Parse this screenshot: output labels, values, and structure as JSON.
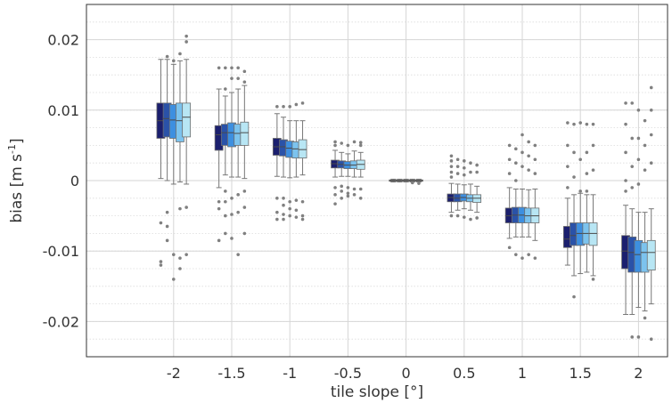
{
  "chart_data": {
    "type": "box",
    "xlabel": "tile slope [°]",
    "ylabel_main": "bias [m s",
    "ylabel_sup": "-1",
    "ylabel_close": "]",
    "xlim": [
      -2.75,
      2.25
    ],
    "ylim": [
      -0.025,
      0.025
    ],
    "x_ticks": [
      -2,
      -1.5,
      -1,
      -0.5,
      0,
      0.5,
      1,
      1.5,
      2
    ],
    "x_tick_labels": [
      "-2",
      "-1.5",
      "-1",
      "-0.5",
      "0",
      "0.5",
      "1",
      "1.5",
      "2"
    ],
    "y_ticks": [
      -0.02,
      -0.01,
      0,
      0.01,
      0.02
    ],
    "y_tick_labels": [
      "-0.02",
      "-0.01",
      "0",
      "0.01",
      "0.02"
    ],
    "y_minor_step": 0.0025,
    "grid": true,
    "series_colors": [
      "#1b1f6e",
      "#2a52a8",
      "#3d8fe0",
      "#7cc3ee",
      "#b8e6f4"
    ],
    "groups": [
      {
        "x": -2,
        "boxes": [
          {
            "q1": 0.006,
            "median": 0.0085,
            "q3": 0.011,
            "whisker_low": 0.0003,
            "whisker_high": 0.0172,
            "outliers": [
              -0.012,
              -0.0115,
              -0.006
            ]
          },
          {
            "q1": 0.0062,
            "median": 0.0088,
            "q3": 0.011,
            "whisker_low": 0.0,
            "whisker_high": 0.0172,
            "outliers": [
              0.0176,
              -0.0085,
              -0.0065,
              -0.0045
            ]
          },
          {
            "q1": 0.006,
            "median": 0.0086,
            "q3": 0.0108,
            "whisker_low": -0.0005,
            "whisker_high": 0.0165,
            "outliers": [
              0.017,
              -0.014,
              -0.0105
            ]
          },
          {
            "q1": 0.0055,
            "median": 0.0085,
            "q3": 0.011,
            "whisker_low": -0.0002,
            "whisker_high": 0.017,
            "outliers": [
              0.018,
              -0.0125,
              -0.011,
              -0.004
            ]
          },
          {
            "q1": 0.0062,
            "median": 0.009,
            "q3": 0.011,
            "whisker_low": -0.0005,
            "whisker_high": 0.0172,
            "outliers": [
              0.0205,
              0.0197,
              -0.0105,
              -0.0038
            ]
          }
        ]
      },
      {
        "x": -1.5,
        "boxes": [
          {
            "q1": 0.0043,
            "median": 0.0065,
            "q3": 0.0078,
            "whisker_low": -0.001,
            "whisker_high": 0.013,
            "outliers": [
              0.016,
              -0.003,
              -0.004,
              -0.0085
            ]
          },
          {
            "q1": 0.005,
            "median": 0.0068,
            "q3": 0.008,
            "whisker_low": 0.0008,
            "whisker_high": 0.012,
            "outliers": [
              0.016,
              0.013,
              -0.0015,
              -0.003,
              -0.005,
              -0.0075
            ]
          },
          {
            "q1": 0.0048,
            "median": 0.0068,
            "q3": 0.0082,
            "whisker_low": 0.0005,
            "whisker_high": 0.0125,
            "outliers": [
              0.016,
              0.0145,
              -0.0025,
              -0.0048,
              -0.0082
            ]
          },
          {
            "q1": 0.005,
            "median": 0.0067,
            "q3": 0.008,
            "whisker_low": 0.0005,
            "whisker_high": 0.013,
            "outliers": [
              0.016,
              0.0145,
              -0.002,
              -0.0045,
              -0.0105
            ]
          },
          {
            "q1": 0.005,
            "median": 0.0068,
            "q3": 0.0083,
            "whisker_low": 0.0003,
            "whisker_high": 0.0135,
            "outliers": [
              0.0155,
              0.014,
              -0.0015,
              -0.0038,
              -0.0075
            ]
          }
        ]
      },
      {
        "x": -1,
        "boxes": [
          {
            "q1": 0.0036,
            "median": 0.0048,
            "q3": 0.006,
            "whisker_low": 0.0006,
            "whisker_high": 0.0095,
            "outliers": [
              0.0105,
              -0.0025,
              -0.0045,
              -0.0055
            ]
          },
          {
            "q1": 0.0035,
            "median": 0.0048,
            "q3": 0.0058,
            "whisker_low": 0.0005,
            "whisker_high": 0.009,
            "outliers": [
              0.0105,
              -0.0025,
              -0.0035,
              -0.0048,
              -0.0055
            ]
          },
          {
            "q1": 0.0033,
            "median": 0.0046,
            "q3": 0.0056,
            "whisker_low": 0.0004,
            "whisker_high": 0.0085,
            "outliers": [
              0.0105,
              -0.003,
              -0.004,
              -0.005
            ]
          },
          {
            "q1": 0.0032,
            "median": 0.0045,
            "q3": 0.0055,
            "whisker_low": 0.0005,
            "whisker_high": 0.0085,
            "outliers": [
              0.0108,
              -0.0028,
              -0.0042,
              -0.0052
            ]
          },
          {
            "q1": 0.0032,
            "median": 0.0044,
            "q3": 0.0058,
            "whisker_low": 0.0008,
            "whisker_high": 0.0085,
            "outliers": [
              0.011,
              -0.003,
              -0.005,
              -0.0055
            ]
          }
        ]
      },
      {
        "x": -0.5,
        "boxes": [
          {
            "q1": 0.0018,
            "median": 0.0024,
            "q3": 0.0029,
            "whisker_low": 0.0005,
            "whisker_high": 0.0043,
            "outliers": [
              0.0055,
              0.005,
              -0.001,
              -0.002,
              -0.0033
            ]
          },
          {
            "q1": 0.0018,
            "median": 0.0023,
            "q3": 0.0028,
            "whisker_low": 0.0006,
            "whisker_high": 0.004,
            "outliers": [
              0.0053,
              -0.0008,
              -0.0015,
              -0.0025
            ]
          },
          {
            "q1": 0.0017,
            "median": 0.0022,
            "q3": 0.0027,
            "whisker_low": 0.0006,
            "whisker_high": 0.0038,
            "outliers": [
              0.005,
              -0.001,
              -0.0018,
              -0.0022
            ]
          },
          {
            "q1": 0.0017,
            "median": 0.0022,
            "q3": 0.0028,
            "whisker_low": 0.0005,
            "whisker_high": 0.0042,
            "outliers": [
              0.0055,
              -0.0012,
              -0.002
            ]
          },
          {
            "q1": 0.0016,
            "median": 0.0023,
            "q3": 0.0029,
            "whisker_low": 0.0005,
            "whisker_high": 0.004,
            "outliers": [
              0.0054,
              0.005,
              -0.0012,
              -0.0025
            ]
          }
        ]
      },
      {
        "x": 0,
        "boxes": [
          {
            "q1": -0.0001,
            "median": 0.0,
            "q3": 0.0001,
            "whisker_low": -0.0002,
            "whisker_high": 0.0002,
            "outliers": []
          },
          {
            "q1": -0.0001,
            "median": 0.0,
            "q3": 0.0001,
            "whisker_low": -0.0002,
            "whisker_high": 0.0002,
            "outliers": []
          },
          {
            "q1": -0.0001,
            "median": 0.0,
            "q3": 0.0001,
            "whisker_low": -0.0002,
            "whisker_high": 0.0002,
            "outliers": []
          },
          {
            "q1": -0.0001,
            "median": 0.0,
            "q3": 0.0001,
            "whisker_low": -0.0002,
            "whisker_high": 0.0002,
            "outliers": [
              -0.0003
            ]
          },
          {
            "q1": -0.0001,
            "median": 0.0,
            "q3": 0.0001,
            "whisker_low": -0.0002,
            "whisker_high": 0.0002,
            "outliers": [
              -0.0004
            ]
          }
        ]
      },
      {
        "x": 0.5,
        "boxes": [
          {
            "q1": -0.003,
            "median": -0.0024,
            "q3": -0.0019,
            "whisker_low": -0.0045,
            "whisker_high": -0.0004,
            "outliers": [
              0.0035,
              0.0028,
              0.002,
              0.0012,
              0.0005,
              -0.005
            ]
          },
          {
            "q1": -0.003,
            "median": -0.0025,
            "q3": -0.0019,
            "whisker_low": -0.0042,
            "whisker_high": -0.0005,
            "outliers": [
              0.003,
              0.002,
              0.001,
              -0.005
            ]
          },
          {
            "q1": -0.0029,
            "median": -0.0024,
            "q3": -0.0019,
            "whisker_low": -0.004,
            "whisker_high": -0.0006,
            "outliers": [
              0.0028,
              0.0018,
              0.0008,
              -0.0052
            ]
          },
          {
            "q1": -0.003,
            "median": -0.0025,
            "q3": -0.002,
            "whisker_low": -0.0042,
            "whisker_high": -0.0005,
            "outliers": [
              0.0025,
              0.0012,
              -0.0055
            ]
          },
          {
            "q1": -0.0031,
            "median": -0.0025,
            "q3": -0.002,
            "whisker_low": -0.0045,
            "whisker_high": -0.0008,
            "outliers": [
              0.0022,
              0.0012,
              -0.0053
            ]
          }
        ]
      },
      {
        "x": 1,
        "boxes": [
          {
            "q1": -0.006,
            "median": -0.005,
            "q3": -0.0039,
            "whisker_low": -0.0082,
            "whisker_high": -0.001,
            "outliers": [
              0.005,
              0.003,
              0.001,
              -0.0095
            ]
          },
          {
            "q1": -0.006,
            "median": -0.0049,
            "q3": -0.0038,
            "whisker_low": -0.008,
            "whisker_high": -0.0012,
            "outliers": [
              0.0045,
              0.0025,
              0.0,
              -0.0105
            ]
          },
          {
            "q1": -0.006,
            "median": -0.0049,
            "q3": -0.0038,
            "whisker_low": -0.008,
            "whisker_high": -0.0012,
            "outliers": [
              0.0065,
              0.004,
              0.002,
              -0.011
            ]
          },
          {
            "q1": -0.006,
            "median": -0.005,
            "q3": -0.0039,
            "whisker_low": -0.008,
            "whisker_high": -0.0013,
            "outliers": [
              0.0055,
              0.0035,
              0.0015,
              -0.0105
            ]
          },
          {
            "q1": -0.006,
            "median": -0.005,
            "q3": -0.0039,
            "whisker_low": -0.0085,
            "whisker_high": -0.0012,
            "outliers": [
              0.005,
              0.003,
              0.001,
              -0.011
            ]
          }
        ]
      },
      {
        "x": 1.5,
        "boxes": [
          {
            "q1": -0.0095,
            "median": -0.0083,
            "q3": -0.0065,
            "whisker_low": -0.012,
            "whisker_high": -0.0025,
            "outliers": [
              0.0082,
              0.005,
              0.002,
              -0.001
            ]
          },
          {
            "q1": -0.0092,
            "median": -0.0078,
            "q3": -0.006,
            "whisker_low": -0.0135,
            "whisker_high": -0.002,
            "outliers": [
              0.008,
              0.004,
              0.0005,
              -0.0165
            ]
          },
          {
            "q1": -0.0092,
            "median": -0.0075,
            "q3": -0.006,
            "whisker_low": -0.0132,
            "whisker_high": -0.0018,
            "outliers": [
              0.0082,
              0.003,
              -0.0015
            ]
          },
          {
            "q1": -0.009,
            "median": -0.0075,
            "q3": -0.006,
            "whisker_low": -0.013,
            "whisker_high": -0.002,
            "outliers": [
              0.008,
              0.004,
              0.001,
              -0.0015
            ]
          },
          {
            "q1": -0.0092,
            "median": -0.0075,
            "q3": -0.006,
            "whisker_low": -0.0135,
            "whisker_high": -0.002,
            "outliers": [
              0.008,
              0.005,
              0.0015,
              -0.014
            ]
          }
        ]
      },
      {
        "x": 2,
        "boxes": [
          {
            "q1": -0.0125,
            "median": -0.01,
            "q3": -0.0078,
            "whisker_low": -0.019,
            "whisker_high": -0.0035,
            "outliers": [
              0.011,
              0.008,
              0.004,
              0.0,
              -0.0015
            ]
          },
          {
            "q1": -0.013,
            "median": -0.0102,
            "q3": -0.008,
            "whisker_low": -0.019,
            "whisker_high": -0.004,
            "outliers": [
              0.011,
              0.006,
              0.002,
              -0.001,
              -0.0222
            ]
          },
          {
            "q1": -0.013,
            "median": -0.0105,
            "q3": -0.0085,
            "whisker_low": -0.018,
            "whisker_high": -0.0045,
            "outliers": [
              0.01,
              0.006,
              0.003,
              -0.0005,
              -0.0222
            ]
          },
          {
            "q1": -0.013,
            "median": -0.0102,
            "q3": -0.0088,
            "whisker_low": -0.0185,
            "whisker_high": -0.0045,
            "outliers": [
              0.0085,
              0.005,
              0.0015,
              -0.0195
            ]
          },
          {
            "q1": -0.0127,
            "median": -0.0102,
            "q3": -0.0085,
            "whisker_low": -0.0175,
            "whisker_high": -0.004,
            "outliers": [
              0.0132,
              0.01,
              0.0065,
              0.0025,
              -0.0225
            ]
          }
        ]
      }
    ]
  }
}
